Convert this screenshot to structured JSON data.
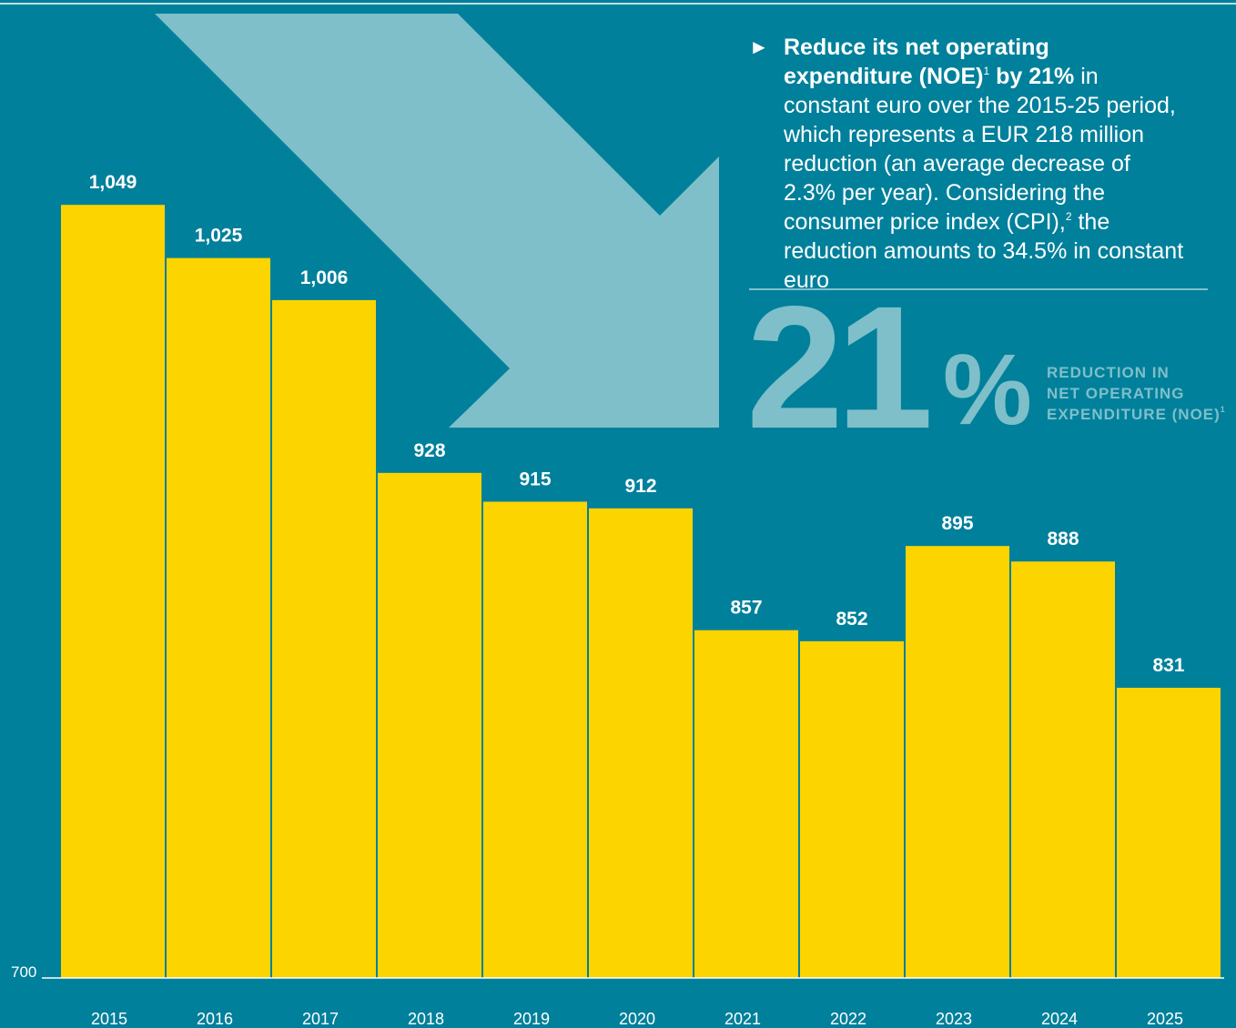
{
  "chart_data": {
    "type": "bar",
    "categories": [
      "2015",
      "2016",
      "2017",
      "2018",
      "2019",
      "2020",
      "2021",
      "2022",
      "2023",
      "2024",
      "2025"
    ],
    "values": [
      1049,
      1025,
      1006,
      928,
      915,
      912,
      857,
      852,
      895,
      888,
      831
    ],
    "value_labels": [
      "1,049",
      "1,025",
      "1,006",
      "928",
      "915",
      "912",
      "857",
      "852",
      "895",
      "888",
      "831"
    ],
    "color": "#fcd400",
    "ylim": [
      700,
      1100
    ],
    "yticks": [
      700
    ]
  },
  "annotation": {
    "bullet": "►",
    "bold_1": "Reduce its net operating expenditure (NOE)",
    "sup_1": "1",
    "bold_2": "by 21%",
    "text_1": "in constant euro over the 2015-25 period, which represents a EUR 218 million reduction (an average decrease of 2.3% per year). Considering the consumer price index (CPI),",
    "sup_2": "2",
    "text_2": "the reduction amounts to 34.5% in constant euro"
  },
  "highlight": {
    "number": "21",
    "unit": "%",
    "label_lines": [
      "REDUCTION IN",
      "NET OPERATING",
      "EXPENDITURE (NOE)"
    ],
    "label_sup": "1"
  }
}
